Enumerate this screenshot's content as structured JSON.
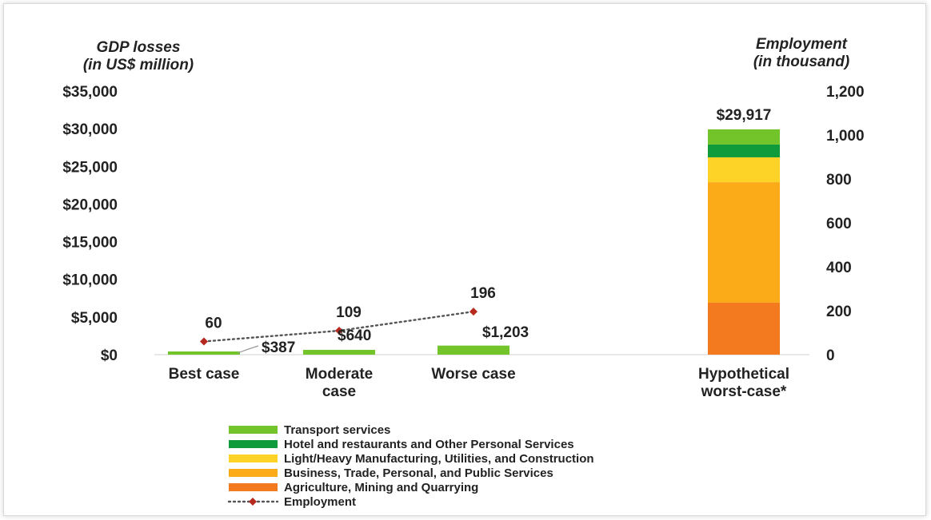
{
  "chart_data": {
    "type": "bar",
    "stacked": true,
    "y_left": {
      "title_line1": "GDP losses",
      "title_line2": "(in US$ million)",
      "ylim": [
        0,
        35000
      ],
      "ticks": [
        "$0",
        "$5,000",
        "$10,000",
        "$15,000",
        "$20,000",
        "$25,000",
        "$30,000",
        "$35,000"
      ]
    },
    "y_right": {
      "title_line1": "Employment",
      "title_line2": "(in thousand)",
      "ylim": [
        0,
        1200
      ],
      "ticks": [
        "0",
        "200",
        "400",
        "600",
        "800",
        "1,000",
        "1,200"
      ]
    },
    "categories": [
      {
        "line1": "Best case",
        "line2": ""
      },
      {
        "line1": "Moderate",
        "line2": "case"
      },
      {
        "line1": "Worse case",
        "line2": ""
      },
      {
        "line1": "Hypothetical",
        "line2": "worst-case*"
      }
    ],
    "totals": [
      387,
      640,
      1203,
      29917
    ],
    "total_labels": [
      "$387",
      "$640",
      "$1,203",
      "$29,917"
    ],
    "series": [
      {
        "name": "Agriculture, Mining and Quarrying",
        "color": "#f47a20",
        "values": [
          0,
          0,
          0,
          6900
        ]
      },
      {
        "name": "Business, Trade, Personal, and Public Services",
        "color": "#fbab18",
        "values": [
          0,
          0,
          0,
          16000
        ]
      },
      {
        "name": "Light/Heavy Manufacturing, Utilities, and Construction",
        "color": "#fdd327",
        "values": [
          0,
          0,
          0,
          3300
        ]
      },
      {
        "name": "Hotel and restaurants and Other Personal Services",
        "color": "#0f9a3c",
        "values": [
          0,
          0,
          0,
          1700
        ]
      },
      {
        "name": "Transport services",
        "color": "#72c42a",
        "values": [
          387,
          640,
          1203,
          2017
        ]
      }
    ],
    "employment": {
      "name": "Employment",
      "color": "#b5291f",
      "values": [
        60,
        109,
        196
      ],
      "labels": [
        "60",
        "109",
        "196"
      ]
    }
  }
}
